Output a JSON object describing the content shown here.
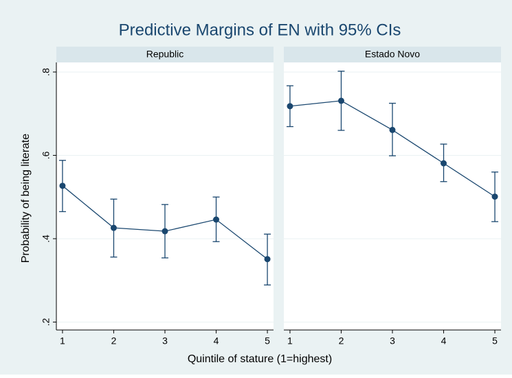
{
  "figure": {
    "title": "Predictive Margins of EN with 95% CIs",
    "xlabel": "Quintile of stature (1=highest)",
    "ylabel": "Probability of being literate"
  },
  "chart_data": [
    {
      "type": "line",
      "facet_title": "Republic",
      "x": [
        1,
        2,
        3,
        4,
        5
      ],
      "series": [
        {
          "color": "#1a476f",
          "values": [
            0.527,
            0.426,
            0.418,
            0.446,
            0.351
          ],
          "lower": [
            0.465,
            0.356,
            0.354,
            0.393,
            0.289
          ],
          "upper": [
            0.588,
            0.495,
            0.482,
            0.5,
            0.411
          ]
        }
      ],
      "xlim": [
        0.88,
        5.12
      ],
      "xticks": [
        1,
        2,
        3,
        4,
        5
      ],
      "ylim": [
        0.181,
        0.823
      ],
      "yticks": [
        {
          "value": 0.2,
          "label": ".2"
        },
        {
          "value": 0.4,
          "label": ".4"
        },
        {
          "value": 0.6,
          "label": ".6"
        },
        {
          "value": 0.8,
          "label": ".8"
        }
      ],
      "grid": true
    },
    {
      "type": "line",
      "facet_title": "Estado Novo",
      "x": [
        1,
        2,
        3,
        4,
        5
      ],
      "series": [
        {
          "color": "#1a476f",
          "values": [
            0.718,
            0.731,
            0.661,
            0.581,
            0.501
          ],
          "lower": [
            0.669,
            0.66,
            0.599,
            0.537,
            0.441
          ],
          "upper": [
            0.767,
            0.802,
            0.725,
            0.627,
            0.56
          ]
        }
      ],
      "xlim": [
        0.88,
        5.12
      ],
      "xticks": [
        1,
        2,
        3,
        4,
        5
      ],
      "ylim": [
        0.181,
        0.823
      ],
      "yticks": [
        {
          "value": 0.2,
          "label": ".2"
        },
        {
          "value": 0.4,
          "label": ".4"
        },
        {
          "value": 0.6,
          "label": ".6"
        },
        {
          "value": 0.8,
          "label": ".8"
        }
      ],
      "grid": true
    }
  ]
}
